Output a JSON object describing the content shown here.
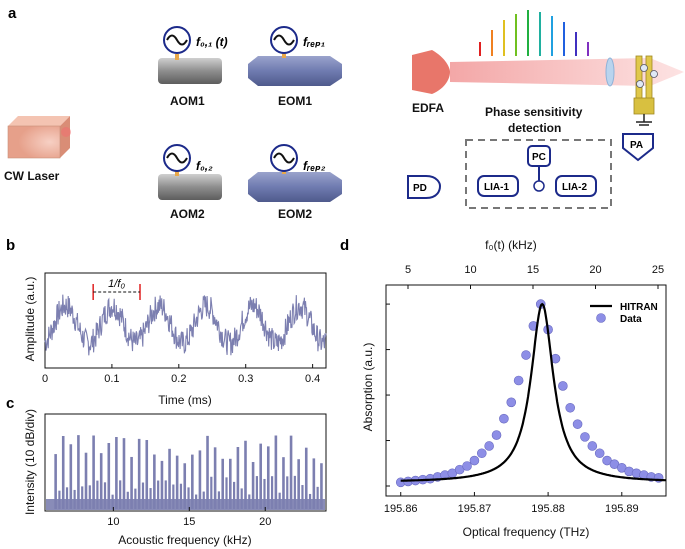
{
  "colors": {
    "fiber": "#1c2a8a",
    "signal": "#7c7fb0",
    "dots": "#8d8ee6",
    "laser": "#f0b29a",
    "edfa": "#e8766a",
    "beam": "#f6b8b8",
    "eom": "#6f7bb0",
    "aom": "#8a8a8a"
  },
  "panel_a": {
    "label": "a",
    "cw_laser": "CW Laser",
    "aom1": "AOM1",
    "aom2": "AOM2",
    "eom1": "EOM1",
    "eom2": "EOM2",
    "f01": "f₀,₁ (t)",
    "f02": "f₀,₂",
    "frep1": "fᵣₑₚ₁",
    "frep2": "fᵣₑₚ₂",
    "edfa": "EDFA",
    "pd": "PD",
    "pa": "PA",
    "pc": "PC",
    "lia1": "LIA-1",
    "lia2": "LIA-2",
    "phase_line1": "Phase sensitivity",
    "phase_line2": "detection"
  },
  "chart_data": [
    {
      "panel": "b",
      "type": "line",
      "xlabel": "Time (ms)",
      "ylabel": "Amplitude (a.u.)",
      "xlim": [
        0,
        0.42
      ],
      "xticks": [
        "0",
        "0.1",
        "0.2",
        "0.3",
        "0.4"
      ],
      "annotation": "1/f₀",
      "period_ms": 0.07,
      "marker_x": [
        0.072,
        0.142
      ]
    },
    {
      "panel": "c",
      "type": "bar",
      "xlabel": "Acoustic frequency (kHz)",
      "ylabel": "Intensity (10 dB/div)",
      "xlim": [
        5.5,
        24
      ],
      "xticks": [
        "10",
        "15",
        "20"
      ],
      "line_spacing_khz": 0.5,
      "first_line_khz": 6.2
    },
    {
      "panel": "d",
      "type": "scatter",
      "xlabel": "Optical frequency (THz)",
      "ylabel": "Absorption (a.u.)",
      "top_xlabel": "f₀(t) (kHz)",
      "xlim": [
        195.858,
        195.896
      ],
      "xticks": [
        "195.86",
        "195.87",
        "195.88",
        "195.89"
      ],
      "top_xticks": [
        "5",
        "10",
        "15",
        "20",
        "25"
      ],
      "ylim": [
        0,
        1.05
      ],
      "legend": [
        "HITRAN",
        "Data"
      ],
      "hitran": {
        "center": 195.8792,
        "hwhm": 0.00185,
        "baseline": 0.02
      },
      "series": [
        {
          "name": "Data",
          "x": [
            195.86,
            195.861,
            195.862,
            195.863,
            195.864,
            195.865,
            195.866,
            195.867,
            195.868,
            195.869,
            195.87,
            195.871,
            195.872,
            195.873,
            195.874,
            195.875,
            195.876,
            195.877,
            195.878,
            195.879,
            195.88,
            195.881,
            195.882,
            195.883,
            195.884,
            195.885,
            195.886,
            195.887,
            195.888,
            195.889,
            195.89,
            195.891,
            195.892,
            195.893,
            195.894,
            195.895
          ],
          "y": [
            0.02,
            0.025,
            0.03,
            0.035,
            0.04,
            0.05,
            0.06,
            0.07,
            0.09,
            0.11,
            0.14,
            0.18,
            0.22,
            0.28,
            0.37,
            0.46,
            0.58,
            0.72,
            0.88,
            1.0,
            0.86,
            0.7,
            0.55,
            0.43,
            0.34,
            0.27,
            0.22,
            0.18,
            0.14,
            0.12,
            0.1,
            0.08,
            0.07,
            0.06,
            0.05,
            0.045
          ]
        }
      ]
    }
  ]
}
